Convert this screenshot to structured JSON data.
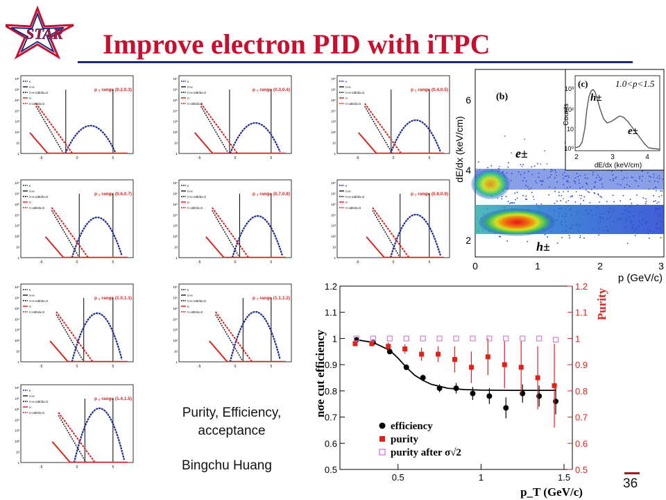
{
  "slide": {
    "title": "Improve electron PID with iTPC",
    "logo_text": "STAR",
    "caption_line1": "Purity, Efficiency,",
    "caption_line2": "acceptance",
    "author": "Bingchu Huang",
    "page_number": "36"
  },
  "colors": {
    "title": "#c8102e",
    "rule": "#1a2a7a",
    "blue_fit": "#1a2a9a",
    "red_fit": "#e0201a"
  },
  "small_panels": {
    "legend": [
      "e",
      "π+e",
      "π+e·σdE/dx√2",
      "π",
      "π·σdE/dx√2"
    ],
    "y_ticks": [
      "10⁷",
      "10⁶",
      "10⁵",
      "10⁴",
      "10³",
      "10²",
      "10",
      "1"
    ],
    "x_ticks": [
      "-5",
      "0",
      "5"
    ],
    "ranges": [
      "range (0.2,0.3)",
      "range (0.3,0.4)",
      "range (0.4,0.5)",
      "range (0.6,0.7)",
      "range (0.7,0.8)",
      "range (0.8,0.9)",
      "range (1.0,1.1)",
      "range (1.1,1.2)",
      "range (1.4,1.5)"
    ],
    "pt_label": "p",
    "pt_sub": "T"
  },
  "dedx_plot": {
    "panel_label": "(b)",
    "ylabel": "dE/dx (keV/cm)",
    "xlabel": "p (GeV/c)",
    "y_ticks": [
      "2",
      "4",
      "6"
    ],
    "x_ticks": [
      "0",
      "1",
      "2",
      "3"
    ],
    "e_label": "e±",
    "h_label": "h±",
    "inset": {
      "panel_label": "(c)",
      "range_text": "1.0<p<1.5",
      "ylabel": "Counts",
      "xlabel": "dE/dx (keV/cm)",
      "y_ticks": [
        "10³",
        "10²",
        "10",
        "10⁰"
      ],
      "x_ticks": [
        "2",
        "3",
        "4"
      ],
      "h_label": "h±",
      "e_label": "e±"
    }
  },
  "chart_data": {
    "type": "scatter",
    "xlabel": "p_T (GeV/c)",
    "ylabel": "nσe cut efficiency",
    "ylabel_right": "Purity",
    "x_ticks": [
      "0.5",
      "1",
      "1.5"
    ],
    "y_ticks": [
      "0.5",
      "0.6",
      "0.7",
      "0.8",
      "0.9",
      "1",
      "1.1",
      "1.2"
    ],
    "xlim": [
      0.15,
      1.55
    ],
    "ylim": [
      0.5,
      1.2
    ],
    "legend": [
      "efficiency",
      "purity",
      "purity after σ√2"
    ],
    "series": [
      {
        "name": "efficiency",
        "color": "#000000",
        "marker": "circle",
        "x": [
          0.25,
          0.35,
          0.45,
          0.55,
          0.65,
          0.75,
          0.85,
          0.95,
          1.05,
          1.15,
          1.25,
          1.35,
          1.45
        ],
        "y": [
          0.995,
          0.985,
          0.95,
          0.89,
          0.85,
          0.81,
          0.81,
          0.79,
          0.78,
          0.735,
          0.79,
          0.78,
          0.76
        ],
        "err": [
          0.005,
          0.006,
          0.008,
          0.01,
          0.012,
          0.015,
          0.02,
          0.025,
          0.03,
          0.04,
          0.035,
          0.04,
          0.05
        ]
      },
      {
        "name": "purity",
        "color": "#e0201a",
        "marker": "square",
        "x": [
          0.25,
          0.35,
          0.45,
          0.55,
          0.65,
          0.75,
          0.85,
          0.95,
          1.05,
          1.15,
          1.25,
          1.35,
          1.45
        ],
        "y": [
          0.98,
          0.98,
          0.97,
          0.96,
          0.94,
          0.94,
          0.92,
          0.89,
          0.93,
          0.9,
          0.89,
          0.85,
          0.82
        ],
        "err": [
          0.008,
          0.01,
          0.015,
          0.018,
          0.025,
          0.03,
          0.05,
          0.06,
          0.07,
          0.09,
          0.1,
          0.12,
          0.16
        ]
      },
      {
        "name": "purity after σ√2",
        "color": "#d47fd4",
        "marker": "open-square",
        "x": [
          0.25,
          0.35,
          0.45,
          0.55,
          0.65,
          0.75,
          0.85,
          0.95,
          1.05,
          1.15,
          1.25,
          1.35,
          1.45
        ],
        "y": [
          1.0,
          1.0,
          1.0,
          1.0,
          1.0,
          1.0,
          1.0,
          1.0,
          1.0,
          1.0,
          1.0,
          1.0,
          0.995
        ],
        "err": [
          0,
          0,
          0,
          0,
          0,
          0,
          0,
          0,
          0,
          0,
          0,
          0,
          0
        ]
      }
    ],
    "fit_curve": {
      "name": "efficiency fit",
      "color": "#000000",
      "x": [
        0.25,
        0.35,
        0.45,
        0.5,
        0.55,
        0.6,
        0.65,
        0.7,
        0.8,
        0.9,
        1.0,
        1.2,
        1.45
      ],
      "y": [
        0.995,
        0.985,
        0.955,
        0.925,
        0.89,
        0.86,
        0.84,
        0.825,
        0.81,
        0.805,
        0.803,
        0.802,
        0.802
      ]
    }
  }
}
